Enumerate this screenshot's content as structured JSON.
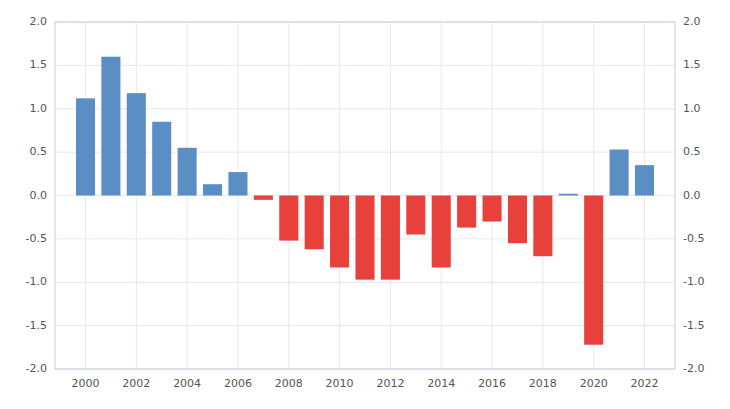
{
  "chart_data": {
    "type": "bar",
    "x": [
      2000,
      2001,
      2002,
      2003,
      2004,
      2005,
      2006,
      2007,
      2008,
      2009,
      2010,
      2011,
      2012,
      2013,
      2014,
      2015,
      2016,
      2017,
      2018,
      2019,
      2020,
      2021,
      2022
    ],
    "values": [
      1.12,
      1.6,
      1.18,
      0.85,
      0.55,
      0.13,
      0.27,
      -0.05,
      -0.52,
      -0.62,
      -0.83,
      -0.97,
      -0.97,
      -0.45,
      -0.83,
      -0.37,
      -0.3,
      -0.55,
      -0.7,
      0.02,
      -1.72,
      0.53,
      0.35
    ],
    "colors": [
      "#5b8ec4",
      "#5b8ec4",
      "#5b8ec4",
      "#5b8ec4",
      "#5b8ec4",
      "#5b8ec4",
      "#5b8ec4",
      "#e8403a",
      "#e8403a",
      "#e8403a",
      "#e8403a",
      "#e8403a",
      "#e8403a",
      "#e8403a",
      "#e8403a",
      "#e8403a",
      "#e8403a",
      "#e8403a",
      "#e8403a",
      "#5b8ec4",
      "#e8403a",
      "#5b8ec4",
      "#5b8ec4"
    ],
    "xlim": [
      1998.8,
      2023.2
    ],
    "xticks": [
      2000,
      2002,
      2004,
      2006,
      2008,
      2010,
      2012,
      2014,
      2016,
      2018,
      2020,
      2022
    ],
    "ylim": [
      -2.0,
      2.0
    ],
    "yticks": [
      {
        "value": -2.0,
        "label": "-2.0"
      },
      -1.5,
      {
        "value": -1.0,
        "label": "-1.0"
      },
      -0.5,
      {
        "value": 0.0,
        "label": "0.0"
      },
      0.5,
      {
        "value": 1.0,
        "label": "1.0"
      },
      1.5,
      {
        "value": 2.0,
        "label": "2.0"
      }
    ],
    "y2lim": [
      -2.0,
      2.0
    ],
    "y2ticks": [
      {
        "value": -2.0,
        "label": "-2.0"
      },
      -1.5,
      {
        "value": -1.0,
        "label": "-1.0"
      },
      -0.5,
      {
        "value": 0.0,
        "label": "0.0"
      },
      0.5,
      {
        "value": 1.0,
        "label": "1.0"
      },
      1.5,
      {
        "value": 2.0,
        "label": "2.0"
      }
    ],
    "grid": true
  }
}
